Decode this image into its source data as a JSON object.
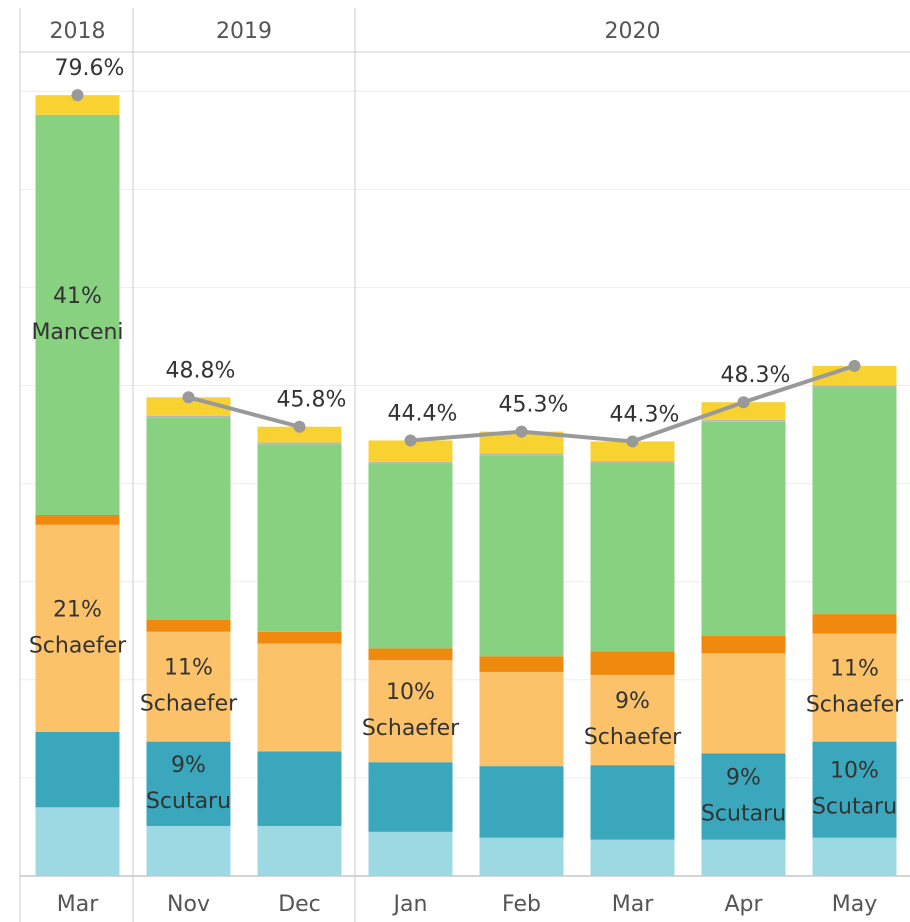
{
  "chart_data": {
    "type": "stacked-bar",
    "groups": [
      {
        "label": "2018",
        "months": [
          "Mar"
        ]
      },
      {
        "label": "2019",
        "months": [
          "Nov",
          "Dec"
        ]
      },
      {
        "label": "2020",
        "months": [
          "Jan",
          "Feb",
          "Mar",
          "Apr",
          "May"
        ]
      }
    ],
    "ylim": [
      0,
      84
    ],
    "yticks": [
      0,
      10,
      20,
      30,
      40,
      50,
      60,
      70,
      80
    ],
    "grid": true,
    "series": [
      {
        "color": "#9dd9e3",
        "values": [
          7.0,
          5.1,
          5.1,
          4.5,
          3.9,
          3.7,
          3.7,
          3.9
        ]
      },
      {
        "name": "Scutaru",
        "color": "#3aa7bd",
        "values": [
          7.7,
          8.6,
          7.6,
          7.1,
          7.3,
          7.6,
          8.8,
          9.8
        ],
        "value_labels": [
          null,
          "9%",
          null,
          null,
          null,
          null,
          "9%",
          "10%"
        ]
      },
      {
        "name": "Schaefer",
        "color": "#fbc26a",
        "values": [
          21.1,
          11.2,
          11.0,
          10.4,
          9.6,
          9.2,
          10.2,
          11.0
        ],
        "value_labels": [
          "21%",
          "11%",
          null,
          "10%",
          null,
          "9%",
          null,
          "11%"
        ]
      },
      {
        "color": "#f08a0f",
        "values": [
          1.0,
          1.2,
          1.2,
          1.2,
          1.6,
          2.4,
          1.8,
          2.0
        ]
      },
      {
        "name": "Manceni",
        "color": "#87d180",
        "values": [
          40.8,
          20.6,
          19.1,
          18.8,
          20.5,
          19.2,
          21.8,
          23.1
        ],
        "value_labels": [
          "41%",
          null,
          null,
          null,
          null,
          null,
          null,
          null
        ]
      },
      {
        "color": "#b8b8b8",
        "values": [
          0,
          0.2,
          0.2,
          0.2,
          0.2,
          0.2,
          0.2,
          0.2
        ]
      },
      {
        "color": "#f7d231",
        "values": [
          2.0,
          1.9,
          1.6,
          2.2,
          2.2,
          2.0,
          1.8,
          2.0
        ]
      }
    ],
    "line": {
      "color": "#999999",
      "values": [
        79.6,
        48.8,
        45.8,
        44.4,
        45.3,
        44.3,
        48.3,
        52.0
      ],
      "value_labels": [
        "79.6%",
        "48.8%",
        "45.8%",
        "44.4%",
        "45.3%",
        "44.3%",
        "48.3%",
        null
      ]
    }
  }
}
